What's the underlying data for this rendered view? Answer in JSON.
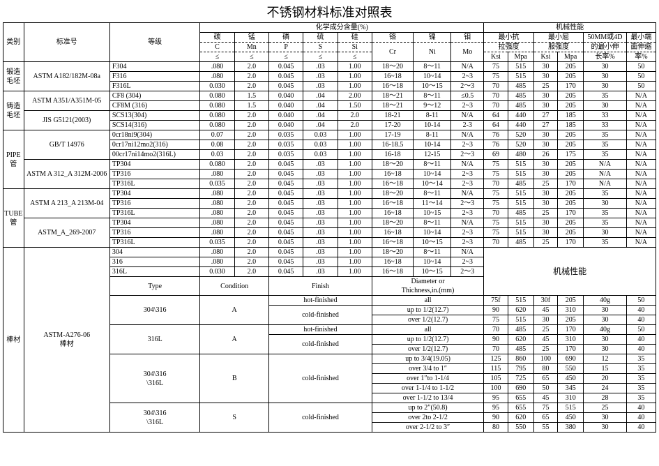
{
  "title": "不锈钢材料标准对照表",
  "group_chem": "化学成分含量(%)",
  "group_mech": "机械性能",
  "headers": {
    "cat": "类别",
    "std": "标准号",
    "grade": "等级",
    "c": "碳",
    "c2": "C",
    "le": "≤",
    "mn": "锰",
    "mn2": "Mn",
    "p": "磷",
    "p2": "P",
    "s": "硫",
    "s2": "S",
    "si": "硅",
    "si2": "Si",
    "cr": "铬",
    "cr2": "Cr",
    "ni": "镍",
    "ni2": "Ni",
    "mo": "钼",
    "mo2": "Mo",
    "tensile1": "最小抗",
    "tensile2": "拉强度",
    "yield1": "最小屈",
    "yield2": "服强度",
    "ext1": "50MM或4D",
    "ext2": "的最小伸",
    "ext3": "长率%",
    "sh1": "最小端",
    "sh2": "面伸缩",
    "sh3": "率%",
    "ksi": "Ksi",
    "mpa": "Mpa"
  },
  "type_col": "Type",
  "cond_col": "Condition",
  "finish_col": "Finish",
  "diam_col1": "Diameter or",
  "diam_col2": "Thichness,in.(mm)",
  "mech_span": "机械性能",
  "hot": "hot-finished",
  "cold": "cold-finished",
  "sections": [
    {
      "cat": "锻造\n毛坯",
      "std": "ASTM A182/182M-08a",
      "rows": [
        [
          "F304",
          ".080",
          "2.0",
          "0.045",
          ".03",
          "1.00",
          "18～20",
          "8～11",
          "N/A",
          "75",
          "515",
          "30",
          "205",
          "30",
          "50"
        ],
        [
          "F316",
          ".080",
          "2.0",
          "0.045",
          ".03",
          "1.00",
          "16~18",
          "10~14",
          "2~3",
          "75",
          "515",
          "30",
          "205",
          "30",
          "50"
        ],
        [
          "F316L",
          "0.030",
          "2.0",
          "0.045",
          ".03",
          "1.00",
          "16～18",
          "10～15",
          "2～3",
          "70",
          "485",
          "25",
          "170",
          "30",
          "50"
        ]
      ]
    },
    {
      "cat": "铸造\n毛坯",
      "blocks": [
        {
          "std": "ASTM A351/A351M-05",
          "rows": [
            [
              "CF8 (304)",
              "0.080",
              "1.5",
              "0.040",
              ".04",
              "2.00",
              "18～21",
              "8～11",
              "≤0.5",
              "70",
              "485",
              "30",
              "205",
              "35",
              "N/A"
            ],
            [
              "CF8M (316)",
              "0.080",
              "1.5",
              "0.040",
              ".04",
              "1.50",
              "18～21",
              "9～12",
              "2~3",
              "70",
              "485",
              "30",
              "205",
              "30",
              "N/A"
            ]
          ]
        },
        {
          "std": "JIS G5121(2003)",
          "rows": [
            [
              "SCS13(304)",
              "0.080",
              "2.0",
              "0.040",
              ".04",
              "2.0",
              "18-21",
              "8-11",
              "N/A",
              "64",
              "440",
              "27",
              "185",
              "33",
              "N/A"
            ],
            [
              "SCS14(316)",
              "0.080",
              "2.0",
              "0.040",
              ".04",
              "2.0",
              "17-20",
              "10-14",
              "2-3",
              "64",
              "440",
              "27",
              "185",
              "33",
              "N/A"
            ]
          ]
        }
      ]
    },
    {
      "cat": "PIPE\n管",
      "blocks": [
        {
          "std": "GB/T 14976",
          "rows": [
            [
              "0cr18ni9(304)",
              "0.07",
              "2.0",
              "0.035",
              "0.03",
              "1.00",
              "17-19",
              "8-11",
              "N/A",
              "76",
              "520",
              "30",
              "205",
              "35",
              "N/A"
            ],
            [
              "0cr17ni12mo2(316)",
              "0.08",
              "2.0",
              "0.035",
              "0.03",
              "1.00",
              "16-18.5",
              "10-14",
              "2~3",
              "76",
              "520",
              "30",
              "205",
              "35",
              "N/A"
            ],
            [
              "00cr17ni14mo2(316L)",
              "0.03",
              "2.0",
              "0.035",
              "0.03",
              "1.00",
              "16-18",
              "12-15",
              "2～3",
              "69",
              "480",
              "26",
              "175",
              "35",
              "N/A"
            ]
          ]
        },
        {
          "std": "ASTM A 312_A 312M-2006",
          "rows": [
            [
              "TP304",
              "0.080",
              "2.0",
              "0.045",
              ".03",
              "1.00",
              "18～20",
              "8～11",
              "N/A",
              "75",
              "515",
              "30",
              "205",
              "N/A",
              "N/A"
            ],
            [
              "TP316",
              ".080",
              "2.0",
              "0.045",
              ".03",
              "1.00",
              "16~18",
              "10~14",
              "2~3",
              "75",
              "515",
              "30",
              "205",
              "N/A",
              "N/A"
            ],
            [
              "TP316L",
              "0.035",
              "2.0",
              "0.045",
              ".03",
              "1.00",
              "16～18",
              "10～14",
              "2~3",
              "70",
              "485",
              "25",
              "170",
              "N/A",
              "N/A"
            ]
          ]
        }
      ]
    },
    {
      "cat": "TUBE\n管",
      "blocks": [
        {
          "std": "ASTM A 213_A 213M-04",
          "rows": [
            [
              "TP304",
              ".080",
              "2.0",
              "0.045",
              ".03",
              "1.00",
              "18～20",
              "8～11",
              "N/A",
              "75",
              "515",
              "30",
              "205",
              "35",
              "N/A"
            ],
            [
              "TP316",
              ".080",
              "2.0",
              "0.045",
              ".03",
              "1.00",
              "16～18",
              "11～14",
              "2～3",
              "75",
              "515",
              "30",
              "205",
              "30",
              "N/A"
            ],
            [
              "TP316L",
              ".080",
              "2.0",
              "0.045",
              ".03",
              "1.00",
              "16~18",
              "10~15",
              "2~3",
              "70",
              "485",
              "25",
              "170",
              "35",
              "N/A"
            ]
          ]
        },
        {
          "std": "ASTM_A_269-2007",
          "rows": [
            [
              "TP304",
              ".080",
              "2.0",
              "0.045",
              ".03",
              "1.00",
              "18～20",
              "8～11",
              "N/A",
              "75",
              "515",
              "30",
              "205",
              "35",
              "N/A"
            ],
            [
              "TP316",
              ".080",
              "2.0",
              "0.045",
              ".03",
              "1.00",
              "16~18",
              "10~14",
              "2~3",
              "75",
              "515",
              "30",
              "205",
              "30",
              "N/A"
            ],
            [
              "TP316L",
              "0.035",
              "2.0",
              "0.045",
              ".03",
              "1.00",
              "16～18",
              "10～15",
              "2~3",
              "70",
              "485",
              "25",
              "170",
              "35",
              "N/A"
            ]
          ]
        }
      ]
    }
  ],
  "bar": {
    "cat": "棒材",
    "std": "ASTM-A276-06\n棒材",
    "chem_rows": [
      [
        "304",
        ".080",
        "2.0",
        "0.045",
        ".03",
        "1.00",
        "18～20",
        "8～11",
        "N/A"
      ],
      [
        "316",
        ".080",
        "2.0",
        "0.045",
        ".03",
        "1.00",
        "16~18",
        "10~14",
        "2~3"
      ],
      [
        "316L",
        "0.030",
        "2.0",
        "0.045",
        ".03",
        "1.00",
        "16～18",
        "10～15",
        "2～3"
      ]
    ],
    "rows": [
      {
        "type": "304\\316",
        "cond": "A",
        "finishes": [
          {
            "f": "hot-finished",
            "d": "all",
            "vals": [
              "75f",
              "515",
              "30f",
              "205",
              "40g",
              "50"
            ]
          },
          {
            "f": "cold-finished",
            "d": "up to 1/2(12.7)",
            "vals": [
              "90",
              "620",
              "45",
              "310",
              "30",
              "40"
            ]
          },
          {
            "f": "",
            "d": "over 1/2(12.7)",
            "vals": [
              "75",
              "515",
              "30",
              "205",
              "30",
              "40"
            ]
          }
        ]
      },
      {
        "type": "316L",
        "cond": "A",
        "finishes": [
          {
            "f": "hot-finished",
            "d": "all",
            "vals": [
              "70",
              "485",
              "25",
              "170",
              "40g",
              "50"
            ]
          },
          {
            "f": "cold-finished",
            "d": "up to 1/2(12.7)",
            "vals": [
              "90",
              "620",
              "45",
              "310",
              "30",
              "40"
            ]
          },
          {
            "f": "",
            "d": "over 1/2(12.7)",
            "vals": [
              "70",
              "485",
              "25",
              "170",
              "30",
              "40"
            ]
          }
        ]
      },
      {
        "type": "304\\316\n\\316L",
        "cond": "B",
        "finishes": [
          {
            "f": "cold-finished",
            "d": "up to 3/4(19.05)",
            "vals": [
              "125",
              "860",
              "100",
              "690",
              "12",
              "35"
            ]
          },
          {
            "f": "",
            "d": "over 3/4 to 1″",
            "vals": [
              "115",
              "795",
              "80",
              "550",
              "15",
              "35"
            ]
          },
          {
            "f": "",
            "d": "over 1″to 1-1/4",
            "vals": [
              "105",
              "725",
              "65",
              "450",
              "20",
              "35"
            ]
          },
          {
            "f": "",
            "d": "over 1-1/4 to 1-1/2",
            "vals": [
              "100",
              "690",
              "50",
              "345",
              "24",
              "35"
            ]
          },
          {
            "f": "",
            "d": "over 1-1/2 to 13/4",
            "vals": [
              "95",
              "655",
              "45",
              "310",
              "28",
              "35"
            ]
          }
        ]
      },
      {
        "type": "304\\316\n\\316L",
        "cond": "S",
        "finishes": [
          {
            "f": "cold-finished",
            "d": "up to 2″(50.8)",
            "vals": [
              "95",
              "655",
              "75",
              "515",
              "25",
              "40"
            ]
          },
          {
            "f": "",
            "d": "over 2to 2-1/2",
            "vals": [
              "90",
              "620",
              "65",
              "450",
              "30",
              "40"
            ]
          },
          {
            "f": "",
            "d": "over 2-1/2 to 3″",
            "vals": [
              "80",
              "550",
              "55",
              "380",
              "30",
              "40"
            ]
          }
        ]
      }
    ]
  }
}
